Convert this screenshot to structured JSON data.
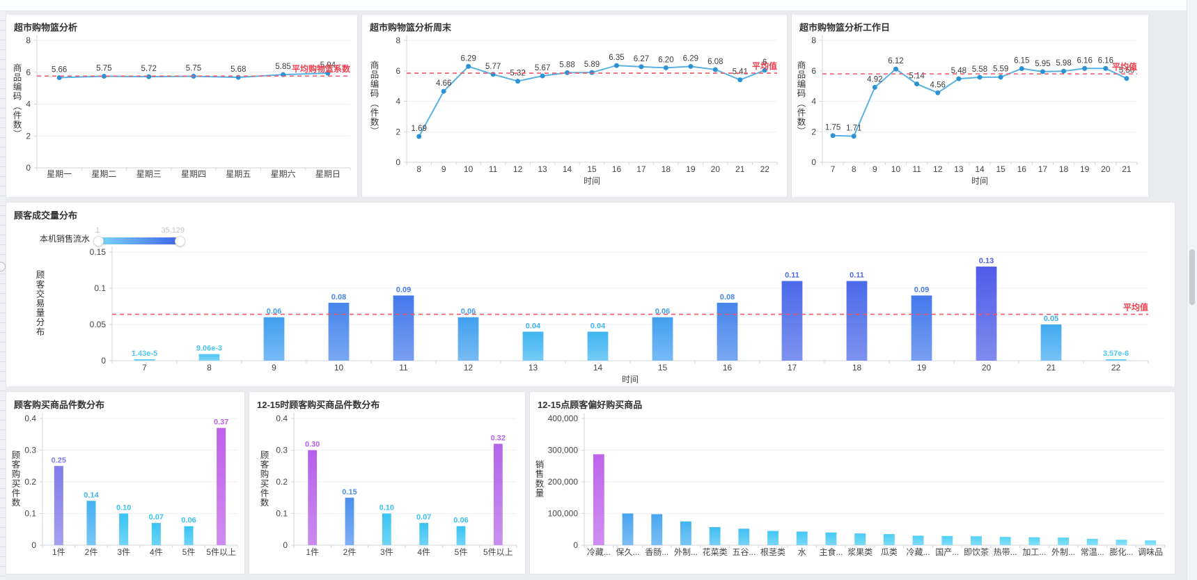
{
  "page": {
    "background": "#eaecef",
    "panel_background": "#ffffff",
    "avg_color": "#f25468",
    "avg_label_color": "#f2404e",
    "axis_text": "#444444",
    "grid_line": "#f0f1f4",
    "axis_line": "#d2d5da"
  },
  "legend": {
    "name": "本机销售流水",
    "min": "1",
    "max": "35,129",
    "gradient_from": "#7bd9f8",
    "gradient_to": "#3e63e9"
  },
  "chart_data": [
    {
      "id": "basket-by-weekday",
      "type": "line",
      "title": "超市购物篮分析",
      "xlabel": "",
      "ylabel": "商品编码（件数）",
      "ylim": [
        0,
        8
      ],
      "yticks": [
        0,
        2,
        4,
        6,
        8
      ],
      "ytick_labels": [
        "0",
        "2",
        "4",
        "6",
        "8"
      ],
      "categories": [
        "星期一",
        "星期二",
        "星期三",
        "星期四",
        "星期五",
        "星期六",
        "星期日"
      ],
      "values": [
        5.66,
        5.75,
        5.72,
        5.75,
        5.68,
        5.85,
        5.94
      ],
      "value_labels": [
        "5.66",
        "5.75",
        "5.72",
        "5.75",
        "5.68",
        "5.85",
        "5.94"
      ],
      "avg_line": {
        "value": 5.76,
        "label": "平均购物篮系数"
      },
      "line_color": "#58b1e4",
      "point_color": "#2d92d4",
      "label_color": "#3d3d3d"
    },
    {
      "id": "basket-weekend",
      "type": "line",
      "title": "超市购物篮分析周末",
      "xlabel": "时间",
      "ylabel": "商品编码（件数）",
      "ylim": [
        0,
        8
      ],
      "yticks": [
        0,
        2,
        4,
        6,
        8
      ],
      "ytick_labels": [
        "0",
        "2",
        "4",
        "6",
        "8"
      ],
      "categories": [
        "8",
        "9",
        "10",
        "11",
        "12",
        "13",
        "14",
        "15",
        "16",
        "17",
        "18",
        "19",
        "20",
        "21",
        "22"
      ],
      "values": [
        1.69,
        4.66,
        6.29,
        5.77,
        5.32,
        5.67,
        5.88,
        5.89,
        6.35,
        6.27,
        6.2,
        6.29,
        6.08,
        5.41,
        6.04
      ],
      "value_labels": [
        "1.69",
        "4.66",
        "6.29",
        "5.77",
        "5.32",
        "5.67",
        "5.88",
        "5.89",
        "6.35",
        "6.27",
        "6.20",
        "6.29",
        "6.08",
        "5.41",
        "6"
      ],
      "avg_line": {
        "value": 5.85,
        "label": "平均值"
      },
      "line_color": "#58b1e4",
      "point_color": "#2d92d4",
      "label_color": "#3d3d3d"
    },
    {
      "id": "basket-workday",
      "type": "line",
      "title": "超市购物篮分析工作日",
      "xlabel": "时间",
      "ylabel": "商品编码（件数）",
      "ylim": [
        0,
        8
      ],
      "yticks": [
        0,
        2,
        4,
        6,
        8
      ],
      "ytick_labels": [
        "0",
        "2",
        "4",
        "6",
        "8"
      ],
      "categories": [
        "7",
        "8",
        "9",
        "10",
        "11",
        "12",
        "13",
        "14",
        "15",
        "16",
        "17",
        "18",
        "19",
        "20",
        "21"
      ],
      "values": [
        1.75,
        1.71,
        4.92,
        6.12,
        5.14,
        4.56,
        5.48,
        5.58,
        5.59,
        6.15,
        5.95,
        5.98,
        6.16,
        6.16,
        5.5
      ],
      "value_labels": [
        "1.75",
        "1.71",
        "4.92",
        "6.12",
        "5.14",
        "4.56",
        "5.48",
        "5.58",
        "5.59",
        "6.15",
        "5.95",
        "5.98",
        "6.16",
        "6.16",
        "5.50"
      ],
      "avg_line": {
        "value": 5.8,
        "label": "平均值"
      },
      "line_color": "#58b1e4",
      "point_color": "#2d92d4",
      "label_color": "#3d3d3d"
    },
    {
      "id": "customer-transaction-distribution",
      "type": "bar",
      "title": "顾客成交量分布",
      "xlabel": "时间",
      "ylabel": "顾客交易量分布",
      "ylim": [
        0,
        0.15
      ],
      "yticks": [
        0,
        0.05,
        0.1,
        0.15
      ],
      "ytick_labels": [
        "0",
        "0.05",
        "0.1",
        "0.15"
      ],
      "categories": [
        "7",
        "8",
        "9",
        "10",
        "11",
        "12",
        "13",
        "14",
        "15",
        "16",
        "17",
        "18",
        "19",
        "20",
        "21",
        "22"
      ],
      "values": [
        1.43e-05,
        0.00906,
        0.06,
        0.08,
        0.09,
        0.06,
        0.04,
        0.04,
        0.06,
        0.08,
        0.11,
        0.11,
        0.09,
        0.13,
        0.05,
        3.57e-06
      ],
      "value_labels": [
        "1.43e-5",
        "9.06e-3",
        "0.06",
        "0.08",
        "0.09",
        "0.06",
        "0.04",
        "0.04",
        "0.06",
        "0.08",
        "0.11",
        "0.11",
        "0.09",
        "0.13",
        "0.05",
        "3.57e-6"
      ],
      "colors": [
        "#4fc8f3",
        "#4cc4f2",
        "#429ff0",
        "#4585ec",
        "#4479eb",
        "#42a0ef",
        "#3fb5f1",
        "#3fb5f1",
        "#429ff0",
        "#4585ec",
        "#4b69e9",
        "#4b69e9",
        "#4479eb",
        "#4f5ce8",
        "#41aaf0",
        "#4fc8f3"
      ],
      "avg_line": {
        "value": 0.064,
        "label": "平均值"
      }
    },
    {
      "id": "items-per-customer",
      "type": "bar",
      "title": "顾客购买商品件数分布",
      "xlabel": "",
      "ylabel": "顾客购买件数",
      "ylim": [
        0,
        0.4
      ],
      "yticks": [
        0,
        0.1,
        0.2,
        0.3,
        0.4
      ],
      "ytick_labels": [
        "0",
        "0.1",
        "0.2",
        "0.3",
        "0.4"
      ],
      "categories": [
        "1件",
        "2件",
        "3件",
        "4件",
        "5件",
        "5件以上"
      ],
      "values": [
        0.25,
        0.14,
        0.1,
        0.07,
        0.06,
        0.37
      ],
      "value_labels": [
        "0.25",
        "0.14",
        "0.10",
        "0.07",
        "0.06",
        "0.37"
      ],
      "colors": [
        "#7f7ce9",
        "#45b0f0",
        "#38c3f2",
        "#38c3f2",
        "#38c3f2",
        "#bd60e9"
      ]
    },
    {
      "id": "items-per-customer-12-15",
      "type": "bar",
      "title": "12-15时顾客购买商品件数分布",
      "xlabel": "",
      "ylabel": "顾客购买件数",
      "ylim": [
        0,
        0.4
      ],
      "yticks": [
        0,
        0.1,
        0.2,
        0.3,
        0.4
      ],
      "ytick_labels": [
        "0",
        "0.1",
        "0.2",
        "0.3",
        "0.4"
      ],
      "categories": [
        "1件",
        "2件",
        "3件",
        "4件",
        "5件",
        "5件以上"
      ],
      "values": [
        0.3,
        0.15,
        0.1,
        0.07,
        0.06,
        0.32
      ],
      "value_labels": [
        "0.30",
        "0.15",
        "0.10",
        "0.07",
        "0.06",
        "0.32"
      ],
      "colors": [
        "#b55fe9",
        "#4a90ee",
        "#38c3f2",
        "#38c3f2",
        "#38c3f2",
        "#b365e9"
      ]
    },
    {
      "id": "preferred-products-12-15",
      "type": "bar",
      "title": "12-15点顾客偏好购买商品",
      "xlabel": "",
      "ylabel": "销售数量",
      "ylim": [
        0,
        400000
      ],
      "yticks": [
        0,
        100000,
        200000,
        300000,
        400000
      ],
      "ytick_labels": [
        "0",
        "100,000",
        "200,000",
        "300,000",
        "400,000"
      ],
      "categories": [
        "冷藏...",
        "保久...",
        "香肠...",
        "外制...",
        "花菜类",
        "五谷...",
        "根茎类",
        "水",
        "主食...",
        "浆果类",
        "瓜类",
        "冷藏...",
        "国产...",
        "即饮茶",
        "热带...",
        "加工...",
        "外制...",
        "常温...",
        "膨化...",
        "调味品"
      ],
      "values": [
        287000,
        100000,
        98000,
        75000,
        57000,
        52000,
        45000,
        43000,
        40000,
        37000,
        35000,
        30000,
        29000,
        28000,
        26000,
        25000,
        24000,
        20000,
        17000,
        15000
      ],
      "colors": [
        "#bd64ea",
        "#47a4f0",
        "#48a6f0",
        "#44b2f1",
        "#40bdf2",
        "#41c0f2",
        "#44c6f3",
        "#45c8f3",
        "#47caf3",
        "#49ccf3",
        "#4bcdf4",
        "#4ecff4",
        "#50d0f4",
        "#52d1f4",
        "#54d2f4",
        "#56d3f4",
        "#58d4f5",
        "#5cd6f5",
        "#61d8f5",
        "#65daf6"
      ]
    }
  ]
}
